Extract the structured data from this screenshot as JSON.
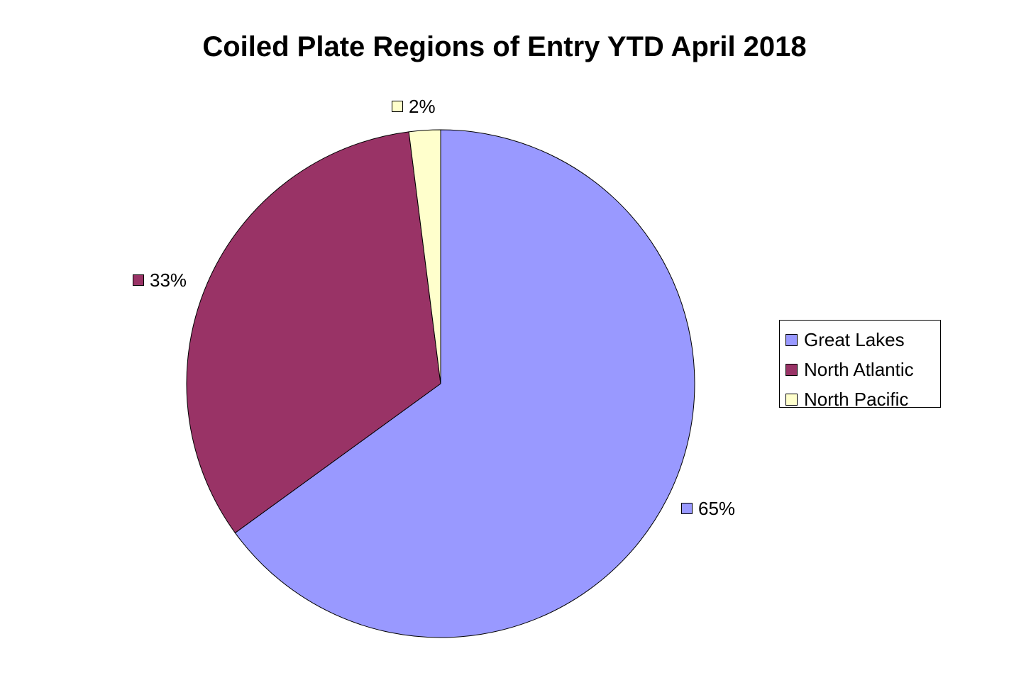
{
  "chart_data": {
    "type": "pie",
    "title": "Coiled Plate Regions of Entry YTD April 2018",
    "categories": [
      "Great Lakes",
      "North Atlantic",
      "North Pacific"
    ],
    "values": [
      65,
      33,
      2
    ],
    "data_labels": [
      "65%",
      "33%",
      "2%"
    ],
    "colors": [
      "#9999FF",
      "#993366",
      "#FFFFCC"
    ],
    "legend_position": "right",
    "start_angle": "12 o'clock, clockwise"
  }
}
